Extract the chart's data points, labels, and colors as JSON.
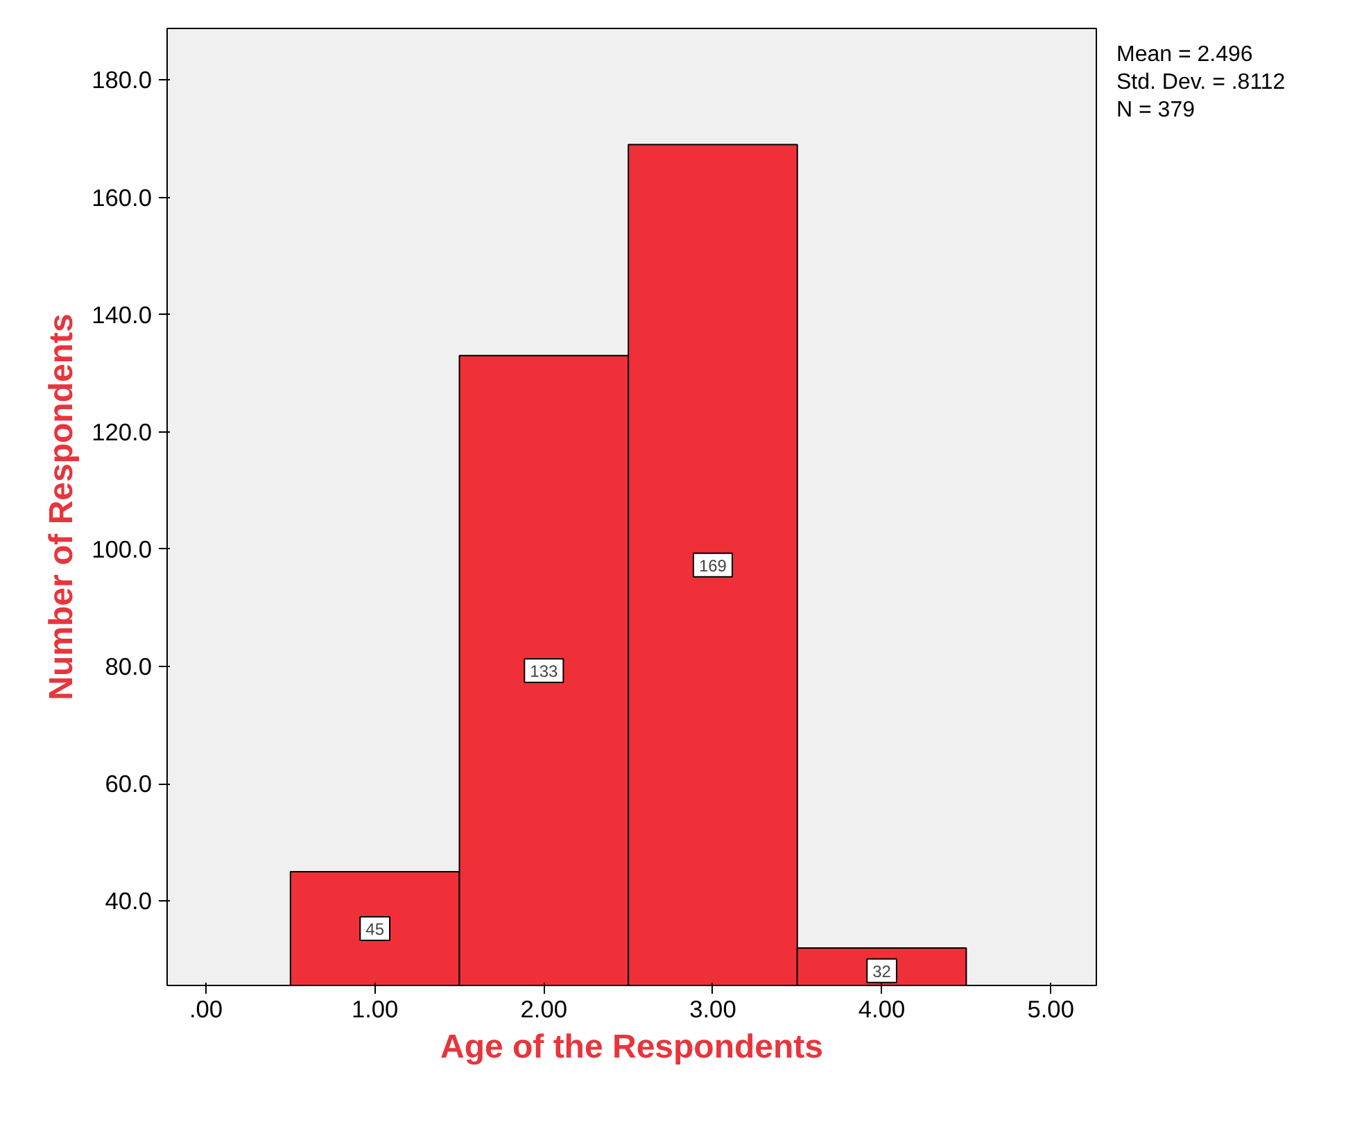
{
  "chart_data": {
    "type": "histogram",
    "xlabel": "Age of the Respondents",
    "ylabel": "Number of Respondents",
    "bins": [
      0.5,
      1.5,
      2.5,
      3.5,
      4.5
    ],
    "values": [
      45,
      133,
      169,
      32
    ],
    "color": "#ef3038",
    "data_labels": true,
    "xlim": [
      -0.23,
      5.27
    ],
    "xticks": [
      {
        "value": 0,
        "label": ".00"
      },
      {
        "value": 1,
        "label": "1.00"
      },
      {
        "value": 2,
        "label": "2.00"
      },
      {
        "value": 3,
        "label": "3.00"
      },
      {
        "value": 4,
        "label": "4.00"
      },
      {
        "value": 5,
        "label": "5.00"
      }
    ],
    "ylim": [
      25.6,
      188.8
    ],
    "yticks": [
      {
        "value": 40,
        "label": "40.0"
      },
      {
        "value": 60,
        "label": "60.0"
      },
      {
        "value": 80,
        "label": "80.0"
      },
      {
        "value": 100,
        "label": "100.0"
      },
      {
        "value": 120,
        "label": "120.0"
      },
      {
        "value": 140,
        "label": "140.0"
      },
      {
        "value": 160,
        "label": "160.0"
      },
      {
        "value": 180,
        "label": "180.0"
      }
    ],
    "grid": false,
    "annotations": [
      "Mean = 2.496",
      "Std. Dev. = .8112",
      "N = 379"
    ]
  }
}
